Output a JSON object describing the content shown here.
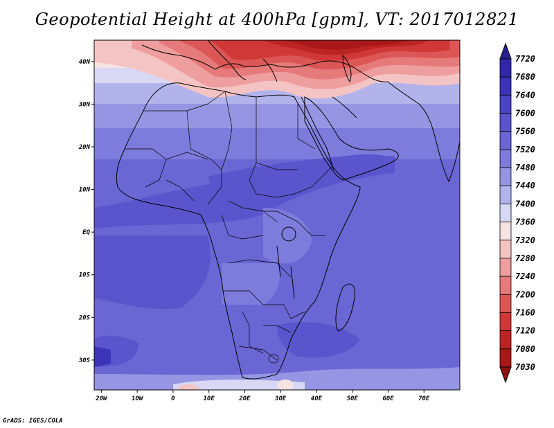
{
  "title": "Geopotential Height at 400hPa [gpm], VT: 2017012821",
  "credit": "GrADS: IGES/COLA",
  "map": {
    "lat_labels": [
      {
        "lat": 40,
        "text": "40N"
      },
      {
        "lat": 30,
        "text": "30N"
      },
      {
        "lat": 20,
        "text": "20N"
      },
      {
        "lat": 10,
        "text": "10N"
      },
      {
        "lat": 0,
        "text": "EQ"
      },
      {
        "lat": -10,
        "text": "10S"
      },
      {
        "lat": -20,
        "text": "20S"
      },
      {
        "lat": -30,
        "text": "30S"
      }
    ],
    "lon_labels": [
      {
        "lon": -20,
        "text": "20W"
      },
      {
        "lon": -10,
        "text": "10W"
      },
      {
        "lon": 0,
        "text": "0"
      },
      {
        "lon": 10,
        "text": "10E"
      },
      {
        "lon": 20,
        "text": "20E"
      },
      {
        "lon": 30,
        "text": "30E"
      },
      {
        "lon": 40,
        "text": "40E"
      },
      {
        "lon": 50,
        "text": "50E"
      },
      {
        "lon": 60,
        "text": "60E"
      },
      {
        "lon": 70,
        "text": "70E"
      }
    ],
    "extent": {
      "lon_min": -22,
      "lon_max": 80,
      "lat_min": -37,
      "lat_max": 45
    }
  },
  "colorbar": {
    "levels": [
      "7720",
      "7680",
      "7640",
      "7600",
      "7560",
      "7520",
      "7480",
      "7440",
      "7400",
      "7360",
      "7320",
      "7280",
      "7240",
      "7200",
      "7160",
      "7120",
      "7080",
      "7030"
    ],
    "colors": [
      "#2a1d8c",
      "#3327a8",
      "#3b33b8",
      "#4a44c4",
      "#5a55cc",
      "#6a66d4",
      "#7d7bdc",
      "#9695e4",
      "#b3b3ec",
      "#d8d8f4",
      "#f6e4e4",
      "#f4c4c4",
      "#ee9e9e",
      "#e67a7a",
      "#dc5656",
      "#d03838",
      "#bc2424",
      "#a81818",
      "#8c1010"
    ]
  }
}
